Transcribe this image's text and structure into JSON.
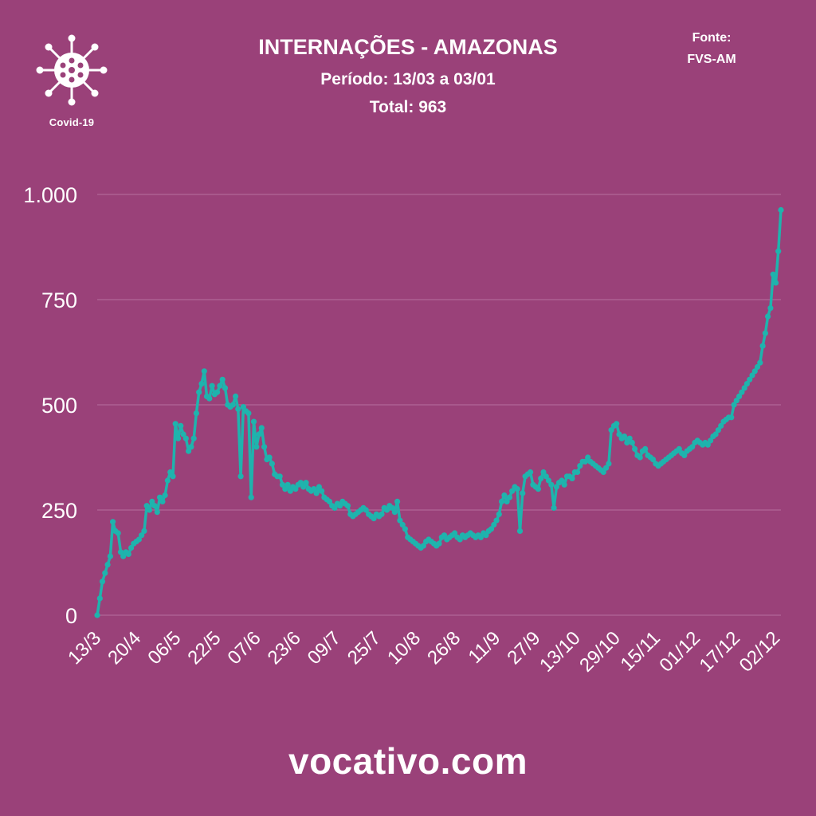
{
  "logo": {
    "icon": "virus-icon",
    "label": "Covid-19"
  },
  "header": {
    "title": "INTERNAÇÕES - AMAZONAS",
    "period": "Período: 13/03 a 03/01",
    "total": "Total: 963"
  },
  "source": {
    "label": "Fonte:",
    "name": "FVS-AM"
  },
  "brand": "vocativo.com",
  "colors": {
    "background": "#9a4179",
    "line": "#1fb3ad",
    "grid": "#b7709e",
    "text": "#ffffff"
  },
  "chart_data": {
    "type": "line",
    "title": "INTERNAÇÕES - AMAZONAS",
    "xlabel": "",
    "ylabel": "",
    "ylim": [
      0,
      1000
    ],
    "yticks": [
      0,
      250,
      500,
      750,
      1000
    ],
    "ytick_labels": [
      "0",
      "250",
      "500",
      "750",
      "1.000"
    ],
    "xtick_labels": [
      "13/3",
      "20/4",
      "06/5",
      "22/5",
      "07/6",
      "23/6",
      "09/7",
      "25/7",
      "10/8",
      "26/8",
      "11/9",
      "27/9",
      "13/10",
      "29/10",
      "15/11",
      "01/12",
      "17/12",
      "02/12"
    ],
    "grid": true,
    "legend": "none",
    "series": [
      {
        "values": [
          0,
          40,
          80,
          100,
          120,
          140,
          222,
          200,
          195,
          150,
          140,
          150,
          145,
          160,
          170,
          175,
          180,
          190,
          200,
          260,
          250,
          270,
          260,
          245,
          280,
          270,
          285,
          320,
          340,
          330,
          455,
          420,
          450,
          430,
          420,
          390,
          400,
          420,
          480,
          530,
          550,
          580,
          520,
          515,
          545,
          525,
          530,
          545,
          560,
          540,
          500,
          495,
          500,
          520,
          490,
          330,
          495,
          485,
          480,
          280,
          460,
          400,
          430,
          445,
          400,
          370,
          375,
          360,
          335,
          330,
          330,
          310,
          300,
          310,
          295,
          305,
          300,
          310,
          315,
          305,
          315,
          300,
          295,
          300,
          290,
          305,
          295,
          280,
          275,
          270,
          260,
          255,
          265,
          260,
          270,
          265,
          260,
          240,
          235,
          240,
          245,
          250,
          255,
          250,
          240,
          235,
          230,
          240,
          235,
          240,
          255,
          250,
          260,
          255,
          245,
          270,
          225,
          215,
          205,
          185,
          180,
          175,
          170,
          165,
          160,
          165,
          175,
          180,
          175,
          170,
          165,
          170,
          185,
          190,
          180,
          185,
          190,
          195,
          185,
          180,
          190,
          185,
          190,
          195,
          190,
          185,
          190,
          185,
          195,
          190,
          200,
          205,
          215,
          225,
          240,
          270,
          285,
          270,
          280,
          295,
          305,
          300,
          200,
          290,
          330,
          335,
          340,
          310,
          305,
          300,
          325,
          340,
          330,
          320,
          310,
          255,
          305,
          315,
          320,
          310,
          330,
          330,
          325,
          340,
          340,
          355,
          365,
          365,
          375,
          365,
          360,
          355,
          350,
          345,
          340,
          350,
          360,
          440,
          450,
          455,
          430,
          420,
          425,
          410,
          420,
          410,
          395,
          380,
          375,
          390,
          395,
          380,
          375,
          370,
          360,
          355,
          360,
          365,
          370,
          375,
          380,
          385,
          390,
          395,
          385,
          380,
          390,
          395,
          400,
          410,
          415,
          410,
          405,
          410,
          405,
          415,
          425,
          430,
          440,
          450,
          460,
          465,
          470,
          470,
          500,
          510,
          520,
          530,
          540,
          550,
          560,
          570,
          580,
          590,
          600,
          640,
          670,
          710,
          730,
          810,
          790,
          865,
          963
        ]
      }
    ]
  }
}
